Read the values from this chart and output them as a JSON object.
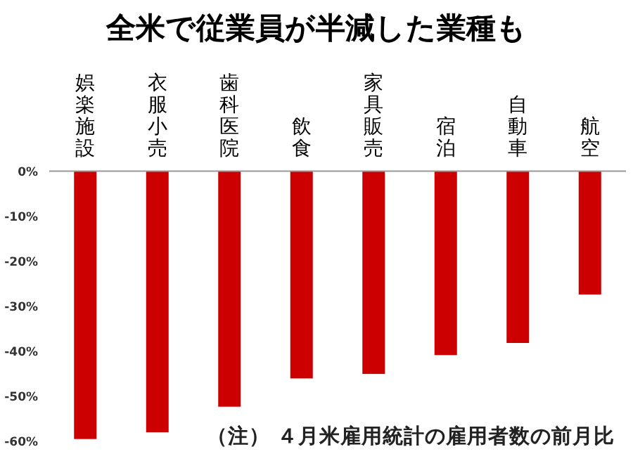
{
  "chart_data": {
    "type": "bar",
    "title": "全米で従業員が半減した業種も",
    "categories": [
      "娯楽施設",
      "衣服小売",
      "歯科医院",
      "飲食",
      "家具販売",
      "宿泊",
      "自動車",
      "航空"
    ],
    "values": [
      -59.7,
      -58.2,
      -52.5,
      -46.2,
      -45.2,
      -41.0,
      -38.3,
      -27.5
    ],
    "color": "#cc0000",
    "ylim": [
      -60,
      0
    ],
    "yticks": [
      {
        "value": 0,
        "label": "0%"
      },
      {
        "value": -10,
        "label": "-10%"
      },
      {
        "value": -20,
        "label": "-20%"
      },
      {
        "value": -30,
        "label": "-30%"
      },
      {
        "value": -40,
        "label": "-40%"
      },
      {
        "value": -50,
        "label": "-50%"
      },
      {
        "value": -60,
        "label": "-60%"
      }
    ],
    "annotations": [
      "（注） ４月米雇用統計の雇用者数の前月比"
    ],
    "grid": false
  }
}
